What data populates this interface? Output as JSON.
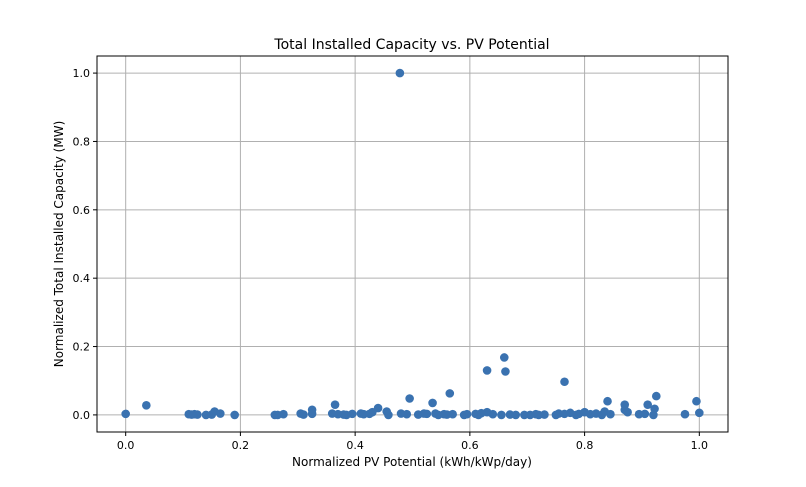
{
  "chart_data": {
    "type": "scatter",
    "title": "Total Installed Capacity vs. PV Potential",
    "xlabel": "Normalized PV Potential (kWh/kWp/day)",
    "ylabel": "Normalized Total Installed Capacity (MW)",
    "xlim": [
      -0.05,
      1.05
    ],
    "ylim": [
      -0.05,
      1.05
    ],
    "xticks": [
      "0.0",
      "0.2",
      "0.4",
      "0.6",
      "0.8",
      "1.0"
    ],
    "yticks": [
      "0.0",
      "0.2",
      "0.4",
      "0.6",
      "0.8",
      "1.0"
    ],
    "grid": true,
    "color": "#3a72b0",
    "points": [
      [
        0.0,
        0.003
      ],
      [
        0.036,
        0.028
      ],
      [
        0.11,
        0.002
      ],
      [
        0.115,
        0.001
      ],
      [
        0.12,
        0.002
      ],
      [
        0.125,
        0.001
      ],
      [
        0.14,
        0.0
      ],
      [
        0.15,
        0.001
      ],
      [
        0.155,
        0.01
      ],
      [
        0.165,
        0.004
      ],
      [
        0.19,
        0.0
      ],
      [
        0.26,
        0.0
      ],
      [
        0.265,
        0.0
      ],
      [
        0.275,
        0.002
      ],
      [
        0.305,
        0.004
      ],
      [
        0.31,
        0.001
      ],
      [
        0.325,
        0.015
      ],
      [
        0.325,
        0.003
      ],
      [
        0.36,
        0.004
      ],
      [
        0.365,
        0.03
      ],
      [
        0.37,
        0.002
      ],
      [
        0.38,
        0.001
      ],
      [
        0.385,
        0.0
      ],
      [
        0.395,
        0.003
      ],
      [
        0.41,
        0.004
      ],
      [
        0.415,
        0.002
      ],
      [
        0.425,
        0.003
      ],
      [
        0.43,
        0.008
      ],
      [
        0.44,
        0.02
      ],
      [
        0.455,
        0.01
      ],
      [
        0.458,
        0.0
      ],
      [
        0.478,
        1.0
      ],
      [
        0.48,
        0.004
      ],
      [
        0.49,
        0.002
      ],
      [
        0.495,
        0.048
      ],
      [
        0.51,
        0.001
      ],
      [
        0.52,
        0.004
      ],
      [
        0.525,
        0.003
      ],
      [
        0.535,
        0.035
      ],
      [
        0.54,
        0.004
      ],
      [
        0.545,
        0.0
      ],
      [
        0.555,
        0.002
      ],
      [
        0.56,
        0.001
      ],
      [
        0.565,
        0.063
      ],
      [
        0.57,
        0.002
      ],
      [
        0.59,
        0.0
      ],
      [
        0.595,
        0.002
      ],
      [
        0.61,
        0.003
      ],
      [
        0.615,
        0.0
      ],
      [
        0.62,
        0.005
      ],
      [
        0.63,
        0.13
      ],
      [
        0.63,
        0.008
      ],
      [
        0.64,
        0.002
      ],
      [
        0.655,
        0.0
      ],
      [
        0.66,
        0.168
      ],
      [
        0.662,
        0.127
      ],
      [
        0.67,
        0.001
      ],
      [
        0.68,
        0.0
      ],
      [
        0.695,
        0.0
      ],
      [
        0.705,
        0.0
      ],
      [
        0.715,
        0.002
      ],
      [
        0.72,
        0.0
      ],
      [
        0.73,
        0.001
      ],
      [
        0.75,
        0.0
      ],
      [
        0.755,
        0.004
      ],
      [
        0.765,
        0.097
      ],
      [
        0.765,
        0.003
      ],
      [
        0.775,
        0.006
      ],
      [
        0.785,
        0.0
      ],
      [
        0.79,
        0.003
      ],
      [
        0.8,
        0.008
      ],
      [
        0.81,
        0.002
      ],
      [
        0.82,
        0.004
      ],
      [
        0.83,
        0.0
      ],
      [
        0.835,
        0.01
      ],
      [
        0.84,
        0.04
      ],
      [
        0.845,
        0.002
      ],
      [
        0.87,
        0.03
      ],
      [
        0.87,
        0.015
      ],
      [
        0.875,
        0.008
      ],
      [
        0.895,
        0.002
      ],
      [
        0.905,
        0.003
      ],
      [
        0.91,
        0.03
      ],
      [
        0.92,
        0.0
      ],
      [
        0.922,
        0.018
      ],
      [
        0.925,
        0.055
      ],
      [
        0.975,
        0.002
      ],
      [
        0.995,
        0.04
      ],
      [
        1.0,
        0.006
      ]
    ]
  }
}
